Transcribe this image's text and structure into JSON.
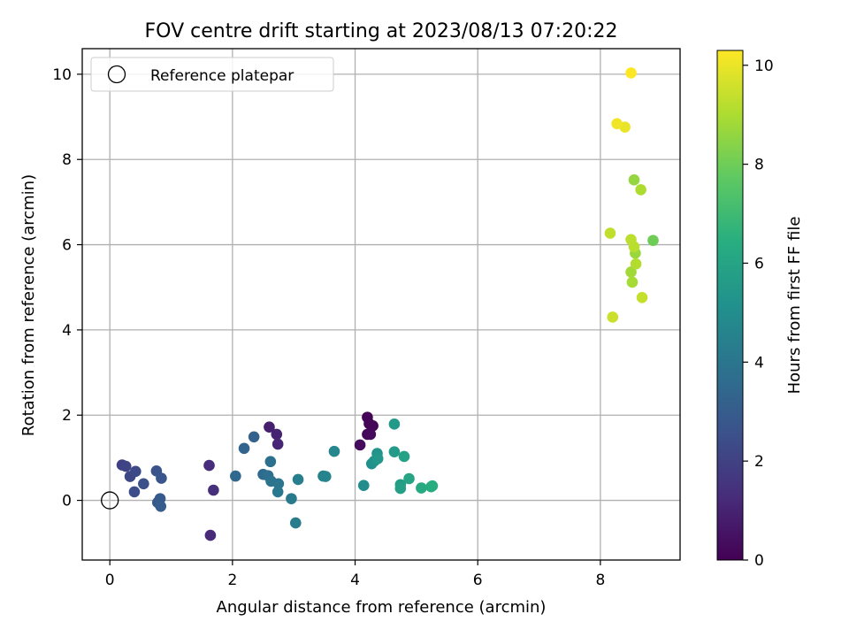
{
  "chart_data": {
    "type": "scatter",
    "title": "FOV centre drift starting at 2023/08/13 07:20:22",
    "xlabel": "Angular distance from reference (arcmin)",
    "ylabel": "Rotation from reference (arcmin)",
    "xlim": [
      -0.45,
      9.3
    ],
    "ylim": [
      -1.4,
      10.6
    ],
    "xticks": [
      0,
      2,
      4,
      6,
      8
    ],
    "yticks": [
      0,
      2,
      4,
      6,
      8,
      10
    ],
    "grid": true,
    "legend": {
      "placement": "top-left",
      "entries": [
        "Reference platepar"
      ]
    },
    "reference_point": {
      "x": 0,
      "y": 0,
      "label": "Reference platepar"
    },
    "colorbar": {
      "label": "Hours from first FF file",
      "min": 0,
      "max": 10.3,
      "ticks": [
        0,
        2,
        4,
        6,
        8,
        10
      ],
      "colormap": "viridis"
    },
    "points": [
      {
        "x": 4.2,
        "y": 1.95,
        "c": 0.05
      },
      {
        "x": 4.23,
        "y": 1.8,
        "c": 0.1
      },
      {
        "x": 4.29,
        "y": 1.75,
        "c": 0.15
      },
      {
        "x": 4.2,
        "y": 1.55,
        "c": 0.2
      },
      {
        "x": 4.25,
        "y": 1.55,
        "c": 0.25
      },
      {
        "x": 4.08,
        "y": 1.3,
        "c": 0.3
      },
      {
        "x": 2.6,
        "y": 1.72,
        "c": 0.9
      },
      {
        "x": 2.72,
        "y": 1.55,
        "c": 1.0
      },
      {
        "x": 2.74,
        "y": 1.32,
        "c": 1.1
      },
      {
        "x": 1.64,
        "y": -0.82,
        "c": 1.2
      },
      {
        "x": 1.62,
        "y": 0.82,
        "c": 1.3
      },
      {
        "x": 1.69,
        "y": 0.24,
        "c": 1.4
      },
      {
        "x": 0.2,
        "y": 0.83,
        "c": 2.0
      },
      {
        "x": 0.26,
        "y": 0.8,
        "c": 2.1
      },
      {
        "x": 0.33,
        "y": 0.56,
        "c": 2.2
      },
      {
        "x": 0.42,
        "y": 0.68,
        "c": 2.3
      },
      {
        "x": 0.4,
        "y": 0.2,
        "c": 2.4
      },
      {
        "x": 0.55,
        "y": 0.39,
        "c": 2.5
      },
      {
        "x": 0.76,
        "y": 0.69,
        "c": 2.6
      },
      {
        "x": 0.84,
        "y": 0.52,
        "c": 2.7
      },
      {
        "x": 0.78,
        "y": -0.05,
        "c": 2.8
      },
      {
        "x": 0.82,
        "y": 0.04,
        "c": 2.9
      },
      {
        "x": 0.83,
        "y": -0.14,
        "c": 3.0
      },
      {
        "x": 2.35,
        "y": 1.49,
        "c": 3.2
      },
      {
        "x": 2.19,
        "y": 1.22,
        "c": 3.3
      },
      {
        "x": 2.05,
        "y": 0.57,
        "c": 3.5
      },
      {
        "x": 2.5,
        "y": 0.61,
        "c": 3.6
      },
      {
        "x": 2.58,
        "y": 0.58,
        "c": 3.7
      },
      {
        "x": 2.62,
        "y": 0.91,
        "c": 3.8
      },
      {
        "x": 2.63,
        "y": 0.45,
        "c": 3.9
      },
      {
        "x": 2.75,
        "y": 0.39,
        "c": 4.0
      },
      {
        "x": 2.74,
        "y": 0.2,
        "c": 4.1
      },
      {
        "x": 2.96,
        "y": 0.04,
        "c": 4.2
      },
      {
        "x": 3.03,
        "y": -0.53,
        "c": 4.3
      },
      {
        "x": 3.07,
        "y": 0.49,
        "c": 4.4
      },
      {
        "x": 3.48,
        "y": 0.57,
        "c": 4.5
      },
      {
        "x": 3.52,
        "y": 0.56,
        "c": 4.6
      },
      {
        "x": 3.66,
        "y": 1.15,
        "c": 4.7
      },
      {
        "x": 4.14,
        "y": 0.35,
        "c": 5.0
      },
      {
        "x": 4.27,
        "y": 0.86,
        "c": 5.1
      },
      {
        "x": 4.31,
        "y": 0.92,
        "c": 5.2
      },
      {
        "x": 4.36,
        "y": 1.1,
        "c": 5.3
      },
      {
        "x": 4.37,
        "y": 0.98,
        "c": 5.4
      },
      {
        "x": 4.64,
        "y": 1.79,
        "c": 5.5
      },
      {
        "x": 4.64,
        "y": 1.14,
        "c": 5.6
      },
      {
        "x": 4.74,
        "y": 0.37,
        "c": 5.7
      },
      {
        "x": 4.74,
        "y": 0.28,
        "c": 5.8
      },
      {
        "x": 4.8,
        "y": 1.03,
        "c": 5.9
      },
      {
        "x": 4.88,
        "y": 0.51,
        "c": 6.0
      },
      {
        "x": 5.08,
        "y": 0.29,
        "c": 6.2
      },
      {
        "x": 5.24,
        "y": 0.32,
        "c": 6.3
      },
      {
        "x": 5.26,
        "y": 0.34,
        "c": 6.4
      },
      {
        "x": 8.86,
        "y": 6.1,
        "c": 8.0
      },
      {
        "x": 8.55,
        "y": 7.52,
        "c": 8.6
      },
      {
        "x": 8.57,
        "y": 5.8,
        "c": 8.7
      },
      {
        "x": 8.5,
        "y": 5.36,
        "c": 8.8
      },
      {
        "x": 8.52,
        "y": 5.12,
        "c": 8.9
      },
      {
        "x": 8.66,
        "y": 7.29,
        "c": 9.0
      },
      {
        "x": 8.58,
        "y": 5.55,
        "c": 9.1
      },
      {
        "x": 8.55,
        "y": 5.95,
        "c": 9.2
      },
      {
        "x": 8.5,
        "y": 6.12,
        "c": 9.25
      },
      {
        "x": 8.16,
        "y": 6.27,
        "c": 9.3
      },
      {
        "x": 8.68,
        "y": 4.76,
        "c": 9.4
      },
      {
        "x": 8.2,
        "y": 4.3,
        "c": 9.5
      },
      {
        "x": 8.4,
        "y": 8.76,
        "c": 10.0
      },
      {
        "x": 8.27,
        "y": 8.84,
        "c": 10.1
      },
      {
        "x": 8.5,
        "y": 10.03,
        "c": 10.3
      }
    ]
  }
}
